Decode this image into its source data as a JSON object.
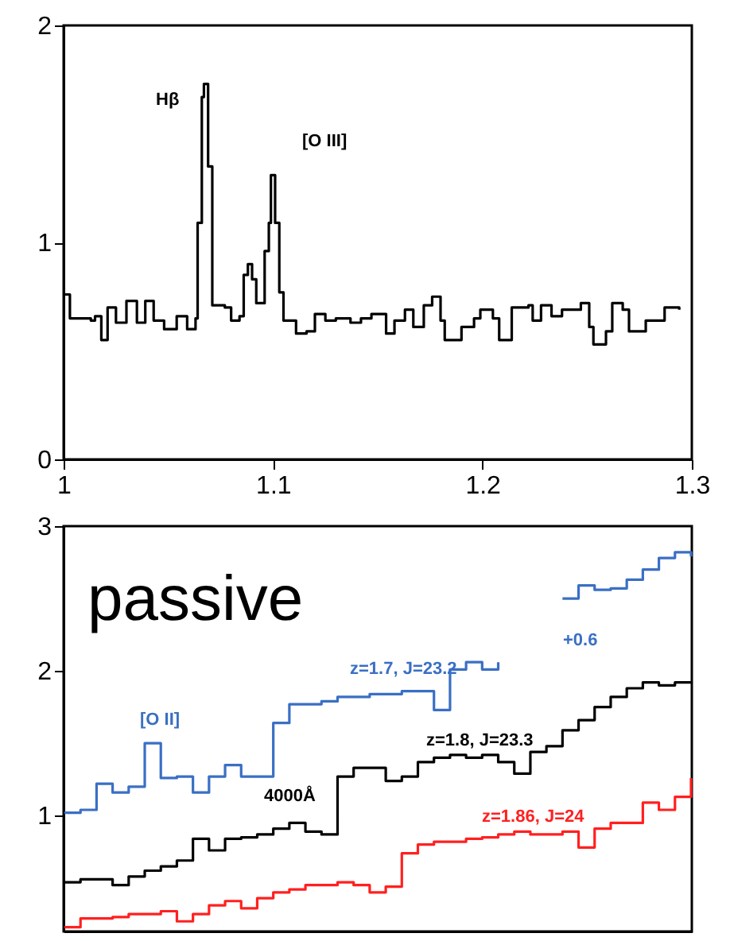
{
  "chart_data": [
    {
      "type": "step",
      "x": [
        1.0,
        1.003,
        1.013,
        1.015,
        1.018,
        1.021,
        1.025,
        1.03,
        1.035,
        1.039,
        1.043,
        1.048,
        1.054,
        1.059,
        1.063,
        1.064,
        1.066,
        1.067,
        1.069,
        1.071,
        1.077,
        1.08,
        1.084,
        1.086,
        1.088,
        1.09,
        1.092,
        1.096,
        1.098,
        1.099,
        1.101,
        1.103,
        1.105,
        1.111,
        1.116,
        1.12,
        1.125,
        1.13,
        1.137,
        1.142,
        1.147,
        1.154,
        1.158,
        1.163,
        1.167,
        1.172,
        1.176,
        1.18,
        1.182,
        1.19,
        1.196,
        1.199,
        1.205,
        1.208,
        1.214,
        1.222,
        1.224,
        1.228,
        1.233,
        1.238,
        1.247,
        1.251,
        1.253,
        1.259,
        1.262,
        1.267,
        1.27,
        1.278,
        1.282,
        1.287,
        1.294
      ],
      "series": [
        {
          "color": "#000000",
          "values": [
            0.76,
            0.65,
            0.64,
            0.66,
            0.55,
            0.7,
            0.63,
            0.73,
            0.63,
            0.73,
            0.64,
            0.6,
            0.66,
            0.6,
            0.65,
            1.09,
            1.67,
            1.73,
            1.35,
            0.71,
            0.7,
            0.64,
            0.66,
            0.85,
            0.9,
            0.83,
            0.72,
            0.96,
            1.09,
            1.31,
            1.09,
            0.77,
            0.64,
            0.58,
            0.59,
            0.67,
            0.64,
            0.65,
            0.63,
            0.65,
            0.67,
            0.58,
            0.64,
            0.69,
            0.61,
            0.71,
            0.75,
            0.64,
            0.55,
            0.61,
            0.65,
            0.69,
            0.65,
            0.55,
            0.7,
            0.71,
            0.64,
            0.71,
            0.66,
            0.69,
            0.72,
            0.61,
            0.53,
            0.59,
            0.72,
            0.69,
            0.59,
            0.64,
            0.64,
            0.7,
            0.69
          ]
        }
      ],
      "xlim": [
        1,
        1.3
      ],
      "xticks": [
        1,
        1.1,
        1.2,
        1.3
      ],
      "ylim": [
        0,
        2
      ],
      "yticks": [
        0,
        1,
        2
      ],
      "annotations": [
        "Hβ",
        "[O III]"
      ]
    },
    {
      "type": "step",
      "categories": [
        null,
        null,
        null,
        null,
        null,
        null,
        null,
        null,
        null,
        null,
        null,
        null,
        null,
        null,
        null,
        null,
        null,
        null,
        null,
        null,
        null,
        null,
        null,
        null,
        null,
        null,
        null,
        null,
        null,
        null,
        null,
        null,
        null,
        null,
        null,
        null,
        null,
        null,
        null,
        null
      ],
      "series": [
        {
          "color": "#3a6fc4",
          "values": [
            1.02,
            1.04,
            1.22,
            1.16,
            1.2,
            1.5,
            1.26,
            1.27,
            1.16,
            1.27,
            1.35,
            1.27,
            1.27,
            1.64,
            1.77,
            1.77,
            1.79,
            1.82,
            1.82,
            1.84,
            1.84,
            1.86,
            1.86,
            1.73,
            2.01,
            2.06,
            2.01,
            2.06,
            null,
            null,
            null,
            2.5,
            2.59,
            2.56,
            2.57,
            2.63,
            2.7,
            2.78,
            2.82,
            2.79
          ]
        },
        {
          "color": "#000000",
          "values": [
            0.54,
            0.56,
            0.56,
            0.52,
            0.58,
            0.62,
            0.65,
            0.69,
            0.84,
            0.76,
            0.84,
            0.85,
            0.87,
            0.91,
            0.95,
            0.89,
            0.87,
            1.27,
            1.33,
            1.33,
            1.24,
            1.27,
            1.37,
            1.4,
            1.42,
            1.4,
            1.42,
            1.37,
            1.29,
            1.44,
            1.48,
            1.59,
            1.66,
            1.75,
            1.82,
            1.88,
            1.92,
            1.9,
            1.92,
            1.93
          ]
        },
        {
          "color": "#ff2020",
          "values": [
            0.23,
            0.29,
            0.29,
            0.3,
            0.32,
            0.32,
            0.34,
            0.27,
            0.32,
            0.38,
            0.41,
            0.36,
            0.43,
            0.47,
            0.49,
            0.52,
            0.52,
            0.54,
            0.52,
            0.47,
            0.51,
            0.74,
            0.8,
            0.82,
            0.82,
            0.84,
            0.85,
            0.87,
            0.89,
            0.87,
            0.87,
            0.89,
            0.78,
            0.91,
            0.95,
            0.95,
            1.09,
            1.04,
            1.13,
            1.26
          ]
        }
      ],
      "ylim": [
        0.2,
        3
      ],
      "yticks": [
        1,
        2,
        3
      ],
      "tick_labels": "y",
      "annotations": [
        "passive",
        "z=1.7, J=23.2",
        "+0.6",
        "[O II]",
        "z=1.8, J=23.3",
        "4000Å",
        "z=1.86, J=24"
      ]
    }
  ]
}
